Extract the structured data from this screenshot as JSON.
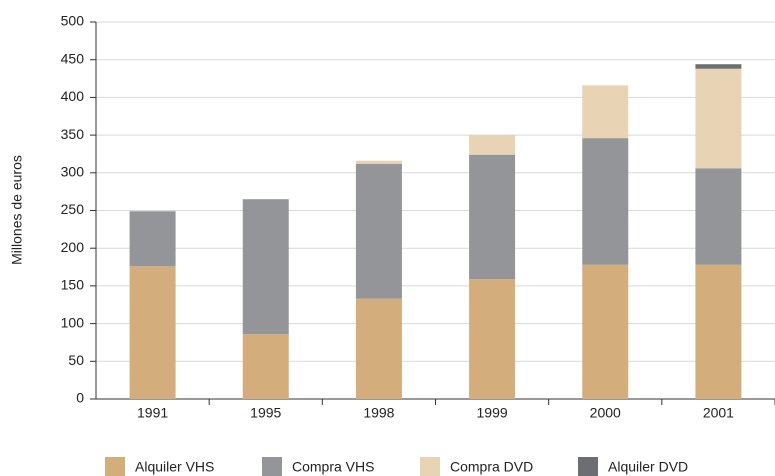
{
  "chart_data": {
    "type": "stacked_bar",
    "y_label": "Millones de euros",
    "categories": [
      "1991",
      "1995",
      "1998",
      "1999",
      "2000",
      "2001"
    ],
    "series": [
      {
        "name": "Alquiler VHS",
        "color": "#d3ae7c",
        "values": [
          176,
          86,
          133,
          159,
          178,
          178
        ]
      },
      {
        "name": "Compra VHS",
        "color": "#939598",
        "values": [
          73,
          179,
          179,
          165,
          168,
          128
        ]
      },
      {
        "name": "Compra DVD",
        "color": "#e8d3b5",
        "values": [
          0,
          0,
          4,
          26,
          70,
          132
        ]
      },
      {
        "name": "Alquiler DVD",
        "color": "#6d6e71",
        "values": [
          0,
          0,
          0,
          0,
          0,
          6
        ]
      }
    ],
    "ylim": [
      0,
      500
    ],
    "yticks": [
      0,
      50,
      100,
      150,
      200,
      250,
      300,
      350,
      400,
      450,
      500
    ],
    "grid": true
  }
}
